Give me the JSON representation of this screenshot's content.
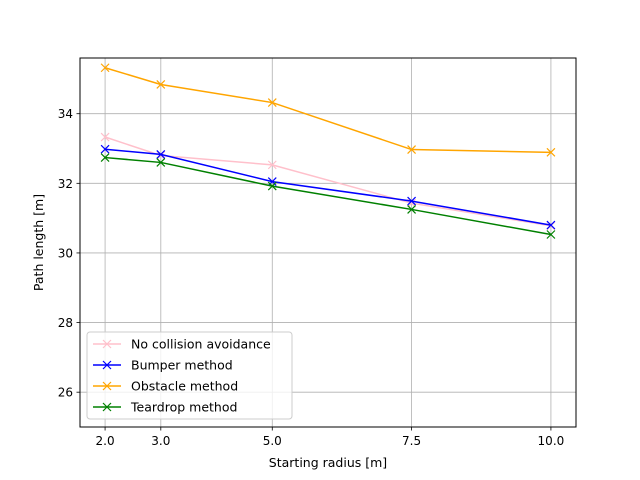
{
  "chart_data": {
    "type": "line",
    "title": "",
    "xlabel": "Starting radius [m]",
    "ylabel": "Path length [m]",
    "xlim": [
      1.55,
      10.45
    ],
    "ylim": [
      25.0,
      35.6
    ],
    "x": [
      2.0,
      3.0,
      5.0,
      7.5,
      10.0
    ],
    "x_tick_labels": [
      "2.0",
      "3.0",
      "5.0",
      "7.5",
      "10.0"
    ],
    "y_ticks": [
      26,
      28,
      30,
      32,
      34
    ],
    "y_tick_labels": [
      "26",
      "28",
      "30",
      "32",
      "34"
    ],
    "grid": true,
    "marker": "x",
    "legend_position": "lower-left",
    "series": [
      {
        "name": "No collision avoidance",
        "color": "#ffc0cb",
        "values": [
          33.33,
          32.8,
          32.53,
          31.43,
          30.78
        ]
      },
      {
        "name": "Bumper method",
        "color": "#0000ff",
        "values": [
          32.98,
          32.83,
          32.05,
          31.49,
          30.8
        ]
      },
      {
        "name": "Obstacle method",
        "color": "#ffa500",
        "values": [
          35.32,
          34.84,
          34.32,
          32.97,
          32.89
        ]
      },
      {
        "name": "Teardrop method",
        "color": "#008000",
        "values": [
          32.74,
          32.6,
          31.92,
          31.25,
          30.53
        ]
      }
    ]
  }
}
